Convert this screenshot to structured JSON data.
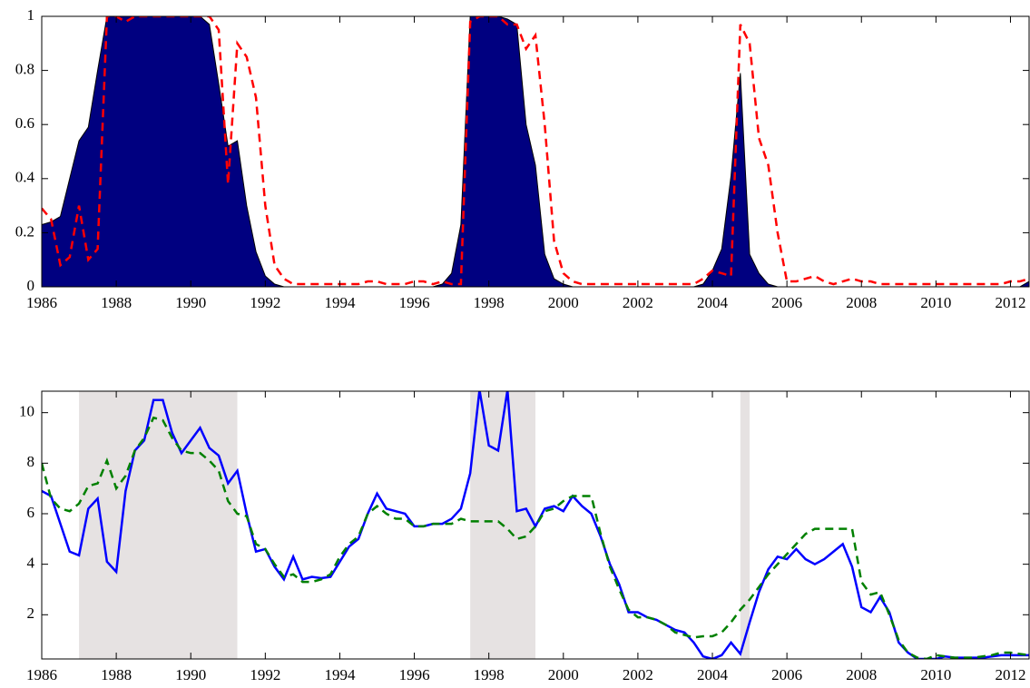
{
  "chart_data": [
    {
      "type": "area",
      "x": [
        1986,
        1986.25,
        1986.5,
        1986.75,
        1987,
        1987.25,
        1987.5,
        1987.75,
        1988,
        1988.25,
        1988.5,
        1988.75,
        1989,
        1989.25,
        1989.5,
        1989.75,
        1990,
        1990.25,
        1990.5,
        1990.75,
        1991,
        1991.25,
        1991.5,
        1991.75,
        1992,
        1992.25,
        1992.5,
        1992.75,
        1993,
        1993.25,
        1993.5,
        1993.75,
        1994,
        1994.25,
        1994.5,
        1994.75,
        1995,
        1995.25,
        1995.5,
        1995.75,
        1996,
        1996.25,
        1996.5,
        1996.75,
        1997,
        1997.25,
        1997.5,
        1997.75,
        1998,
        1998.25,
        1998.5,
        1998.75,
        1999,
        1999.25,
        1999.5,
        1999.75,
        2000,
        2000.25,
        2000.5,
        2000.75,
        2001,
        2001.25,
        2001.5,
        2001.75,
        2002,
        2002.25,
        2002.5,
        2002.75,
        2003,
        2003.25,
        2003.5,
        2003.75,
        2004,
        2004.25,
        2004.5,
        2004.75,
        2005,
        2005.25,
        2005.5,
        2005.75,
        2006,
        2006.25,
        2006.5,
        2006.75,
        2007,
        2007.25,
        2007.5,
        2007.75,
        2008,
        2008.25,
        2008.5,
        2008.75,
        2009,
        2009.25,
        2009.5,
        2009.75,
        2010,
        2010.25,
        2010.5,
        2010.75,
        2011,
        2011.25,
        2011.5,
        2011.75,
        2012,
        2012.25,
        2012.5
      ],
      "series": [
        {
          "style": "area",
          "color": "#000080",
          "values": [
            0.23,
            0.24,
            0.26,
            0.4,
            0.54,
            0.59,
            0.8,
            1,
            1,
            1,
            1,
            1,
            1,
            1,
            1,
            1,
            1,
            1,
            0.97,
            0.75,
            0.52,
            0.54,
            0.3,
            0.13,
            0.04,
            0.01,
            0,
            0,
            0,
            0,
            0,
            0,
            0,
            0,
            0,
            0,
            0,
            0,
            0,
            0,
            0,
            0,
            0,
            0.01,
            0.05,
            0.23,
            1,
            1,
            1,
            1,
            0.99,
            0.97,
            0.6,
            0.45,
            0.12,
            0.03,
            0.01,
            0,
            0,
            0,
            0,
            0,
            0,
            0,
            0,
            0,
            0,
            0,
            0,
            0,
            0,
            0.01,
            0.06,
            0.14,
            0.41,
            0.79,
            0.12,
            0.05,
            0.01,
            0,
            0,
            0,
            0,
            0,
            0,
            0,
            0,
            0,
            0,
            0,
            0,
            0,
            0,
            0,
            0,
            0,
            0,
            0,
            0,
            0,
            0,
            0,
            0,
            0,
            0,
            0,
            0.02
          ]
        },
        {
          "style": "dashed",
          "color": "#ff0000",
          "values": [
            0.29,
            0.25,
            0.08,
            0.11,
            0.3,
            0.1,
            0.14,
            1,
            1,
            0.98,
            1,
            1,
            1,
            1,
            1,
            1,
            1,
            1,
            1,
            0.95,
            0.38,
            0.9,
            0.85,
            0.7,
            0.3,
            0.08,
            0.03,
            0.01,
            0.01,
            0.01,
            0.01,
            0.01,
            0.01,
            0.01,
            0.01,
            0.02,
            0.02,
            0.01,
            0.01,
            0.01,
            0.02,
            0.02,
            0.01,
            0.02,
            0.01,
            0.01,
            0.98,
            1,
            1,
            1,
            0.97,
            0.97,
            0.88,
            0.93,
            0.6,
            0.17,
            0.05,
            0.02,
            0.01,
            0.01,
            0.01,
            0.01,
            0.01,
            0.01,
            0.01,
            0.01,
            0.01,
            0.01,
            0.01,
            0.01,
            0.01,
            0.03,
            0.06,
            0.05,
            0.04,
            0.97,
            0.9,
            0.55,
            0.45,
            0.2,
            0.02,
            0.02,
            0.03,
            0.04,
            0.02,
            0.01,
            0.02,
            0.03,
            0.02,
            0.02,
            0.01,
            0.01,
            0.01,
            0.01,
            0.01,
            0.01,
            0.01,
            0.01,
            0.01,
            0.01,
            0.01,
            0.01,
            0.01,
            0.01,
            0.02,
            0.02,
            0.03
          ]
        }
      ],
      "xlim": [
        1986,
        2012.5
      ],
      "ylim": [
        0,
        1
      ],
      "xticks": [
        1986,
        1988,
        1990,
        1992,
        1994,
        1996,
        1998,
        2000,
        2002,
        2004,
        2006,
        2008,
        2010,
        2012
      ],
      "yticks": [
        0,
        0.2,
        0.4,
        0.6,
        0.8,
        1
      ]
    },
    {
      "type": "line",
      "x": [
        1986,
        1986.25,
        1986.5,
        1986.75,
        1987,
        1987.25,
        1987.5,
        1987.75,
        1988,
        1988.25,
        1988.5,
        1988.75,
        1989,
        1989.25,
        1989.5,
        1989.75,
        1990,
        1990.25,
        1990.5,
        1990.75,
        1991,
        1991.25,
        1991.5,
        1991.75,
        1992,
        1992.25,
        1992.5,
        1992.75,
        1993,
        1993.25,
        1993.5,
        1993.75,
        1994,
        1994.25,
        1994.5,
        1994.75,
        1995,
        1995.25,
        1995.5,
        1995.75,
        1996,
        1996.25,
        1996.5,
        1996.75,
        1997,
        1997.25,
        1997.5,
        1997.75,
        1998,
        1998.25,
        1998.5,
        1998.75,
        1999,
        1999.25,
        1999.5,
        1999.75,
        2000,
        2000.25,
        2000.5,
        2000.75,
        2001,
        2001.25,
        2001.5,
        2001.75,
        2002,
        2002.25,
        2002.5,
        2002.75,
        2003,
        2003.25,
        2003.5,
        2003.75,
        2004,
        2004.25,
        2004.5,
        2004.75,
        2005,
        2005.25,
        2005.5,
        2005.75,
        2006,
        2006.25,
        2006.5,
        2006.75,
        2007,
        2007.25,
        2007.5,
        2007.75,
        2008,
        2008.25,
        2008.5,
        2008.75,
        2009,
        2009.25,
        2009.5,
        2009.75,
        2010,
        2010.25,
        2010.5,
        2010.75,
        2011,
        2011.25,
        2011.5,
        2011.75,
        2012,
        2012.25,
        2012.5
      ],
      "series": [
        {
          "style": "solid",
          "color": "#0000ff",
          "values": [
            6.9,
            6.7,
            5.6,
            4.5,
            4.35,
            6.2,
            6.6,
            4.1,
            3.7,
            6.9,
            8.5,
            8.9,
            10.5,
            10.5,
            9.2,
            8.4,
            8.9,
            9.4,
            8.6,
            8.3,
            7.2,
            7.7,
            6.0,
            4.5,
            4.6,
            3.9,
            3.4,
            4.3,
            3.4,
            3.5,
            3.45,
            3.5,
            4.1,
            4.7,
            5.0,
            6.0,
            6.8,
            6.2,
            6.1,
            6.0,
            5.5,
            5.5,
            5.6,
            5.6,
            5.8,
            6.2,
            7.6,
            10.9,
            8.7,
            8.5,
            10.9,
            6.1,
            6.2,
            5.5,
            6.2,
            6.3,
            6.1,
            6.7,
            6.3,
            6.0,
            5.1,
            4.0,
            3.2,
            2.1,
            2.1,
            1.9,
            1.8,
            1.6,
            1.4,
            1.3,
            0.9,
            0.35,
            0.25,
            0.4,
            0.9,
            0.45,
            1.7,
            2.9,
            3.8,
            4.3,
            4.2,
            4.6,
            4.2,
            4.0,
            4.2,
            4.5,
            4.8,
            3.9,
            2.3,
            2.1,
            2.7,
            2.1,
            0.9,
            0.5,
            0.25,
            0.25,
            0.25,
            0.35,
            0.3,
            0.3,
            0.3,
            0.3,
            0.35,
            0.4,
            0.4,
            0.4,
            0.4
          ]
        },
        {
          "style": "dashed",
          "color": "#008000",
          "values": [
            8.0,
            6.6,
            6.2,
            6.1,
            6.4,
            7.1,
            7.2,
            8.1,
            7.0,
            7.5,
            8.5,
            9.0,
            9.8,
            9.7,
            9.0,
            8.5,
            8.4,
            8.4,
            8.1,
            7.7,
            6.5,
            6.0,
            5.9,
            4.8,
            4.6,
            4.0,
            3.5,
            3.6,
            3.3,
            3.3,
            3.4,
            3.6,
            4.3,
            4.8,
            5.1,
            6.0,
            6.3,
            6.0,
            5.8,
            5.8,
            5.5,
            5.5,
            5.6,
            5.6,
            5.6,
            5.8,
            5.7,
            5.7,
            5.7,
            5.7,
            5.4,
            5.0,
            5.1,
            5.5,
            6.1,
            6.2,
            6.5,
            6.7,
            6.7,
            6.7,
            5.2,
            3.9,
            3.0,
            2.2,
            1.9,
            1.9,
            1.8,
            1.6,
            1.3,
            1.2,
            1.1,
            1.15,
            1.15,
            1.3,
            1.7,
            2.2,
            2.6,
            3.1,
            3.6,
            4.0,
            4.4,
            4.8,
            5.2,
            5.4,
            5.4,
            5.4,
            5.4,
            5.4,
            3.3,
            2.8,
            2.9,
            2.0,
            1.0,
            0.5,
            0.3,
            0.25,
            0.4,
            0.35,
            0.3,
            0.3,
            0.3,
            0.35,
            0.4,
            0.5,
            0.5,
            0.45,
            0.4
          ]
        }
      ],
      "shaded_regions": [
        [
          1987,
          1991.25
        ],
        [
          1997.5,
          1999.25
        ],
        [
          2004.75,
          2005
        ]
      ],
      "shade_color": "#e6e2e2",
      "xlim": [
        1986,
        2012.5
      ],
      "ylim": [
        0.25,
        10.85
      ],
      "xticks": [
        1986,
        1988,
        1990,
        1992,
        1994,
        1996,
        1998,
        2000,
        2002,
        2004,
        2006,
        2008,
        2010,
        2012
      ],
      "yticks": [
        2,
        4,
        6,
        8,
        10
      ]
    }
  ]
}
